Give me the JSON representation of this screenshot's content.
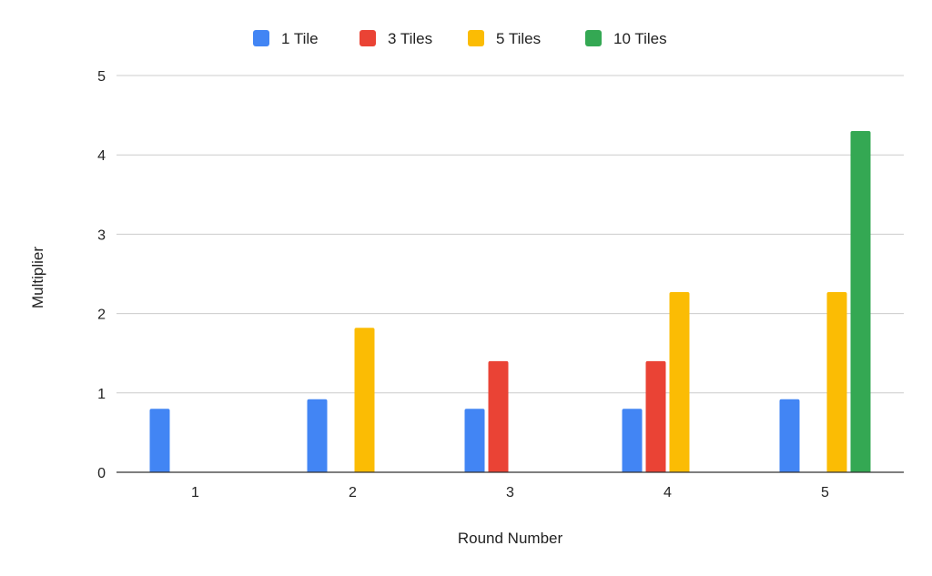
{
  "chart_data": {
    "type": "bar",
    "title": "",
    "xlabel": "Round Number",
    "ylabel": "Multiplier",
    "categories": [
      "1",
      "2",
      "3",
      "4",
      "5"
    ],
    "series": [
      {
        "name": "1 Tile",
        "color": "#4285F4",
        "values": [
          0.8,
          0.92,
          0.8,
          0.8,
          0.92
        ]
      },
      {
        "name": "3 Tiles",
        "color": "#EA4335",
        "values": [
          0,
          0,
          1.4,
          1.4,
          0
        ]
      },
      {
        "name": "5 Tiles",
        "color": "#FBBC04",
        "values": [
          0,
          1.82,
          0,
          2.27,
          2.27
        ]
      },
      {
        "name": "10 Tiles",
        "color": "#34A853",
        "values": [
          0,
          0,
          0,
          0,
          4.3
        ]
      }
    ],
    "ylim": [
      0,
      5
    ],
    "yticks": [
      "0",
      "1",
      "2",
      "3",
      "4",
      "5"
    ],
    "grid": true,
    "legend_position": "top"
  }
}
